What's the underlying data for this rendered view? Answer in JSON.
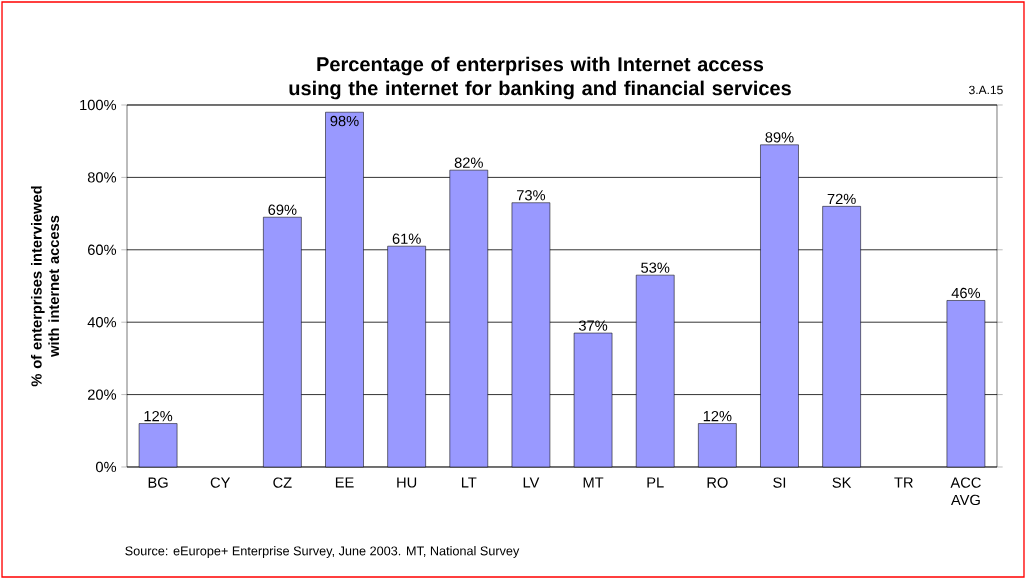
{
  "chart_data": {
    "type": "bar",
    "title": "Percentage of enterprises with Internet access using the internet for banking and financial services",
    "ylabel": "% of enterprises interviewed with internet access",
    "categories": [
      "BG",
      "CY",
      "CZ",
      "EE",
      "HU",
      "LT",
      "LV",
      "MT",
      "PL",
      "RO",
      "SI",
      "SK",
      "TR",
      "ACC AVG"
    ],
    "values": [
      12,
      null,
      69,
      98,
      61,
      82,
      73,
      37,
      53,
      12,
      89,
      72,
      null,
      46
    ],
    "value_labels": [
      "12%",
      null,
      "69%",
      "98%",
      "61%",
      "82%",
      "73%",
      "37%",
      "53%",
      "12%",
      "89%",
      "72%",
      null,
      "46%"
    ],
    "color": "#9999ff",
    "ylim": [
      0,
      100
    ],
    "yticks": [
      {
        "value": 0,
        "label": "0%"
      },
      {
        "value": 20,
        "label": "20%"
      },
      {
        "value": 40,
        "label": "40%"
      },
      {
        "value": 60,
        "label": "60%"
      },
      {
        "value": 80,
        "label": "80%"
      },
      {
        "value": 100,
        "label": "100%"
      }
    ],
    "grid": "y",
    "annotations": [
      "3.A.15",
      "Source: eEurope+ Enterprise Survey, June 2003. MT, National Survey"
    ]
  }
}
